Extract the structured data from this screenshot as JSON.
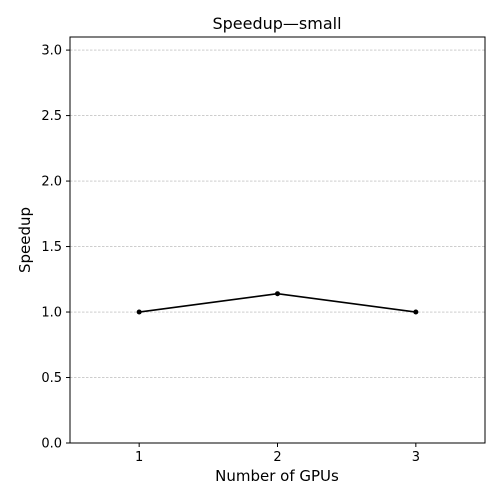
{
  "chart_data": {
    "type": "line",
    "title": "Speedup—small",
    "xlabel": "Number of GPUs",
    "ylabel": "Speedup",
    "x": [
      1,
      2,
      3
    ],
    "series": [
      {
        "name": "Speedup",
        "values": [
          1.0,
          1.14,
          1.0
        ]
      }
    ],
    "xlim": [
      0.5,
      3.5
    ],
    "ylim": [
      0.0,
      3.1
    ],
    "xticks": [
      "1",
      "2",
      "3"
    ],
    "yticks": [
      "0.0",
      "0.5",
      "1.0",
      "1.5",
      "2.0",
      "2.5",
      "3.0"
    ],
    "grid": "y-dashed",
    "line_color": "#000000",
    "grid_color": "#b0b0b0"
  }
}
